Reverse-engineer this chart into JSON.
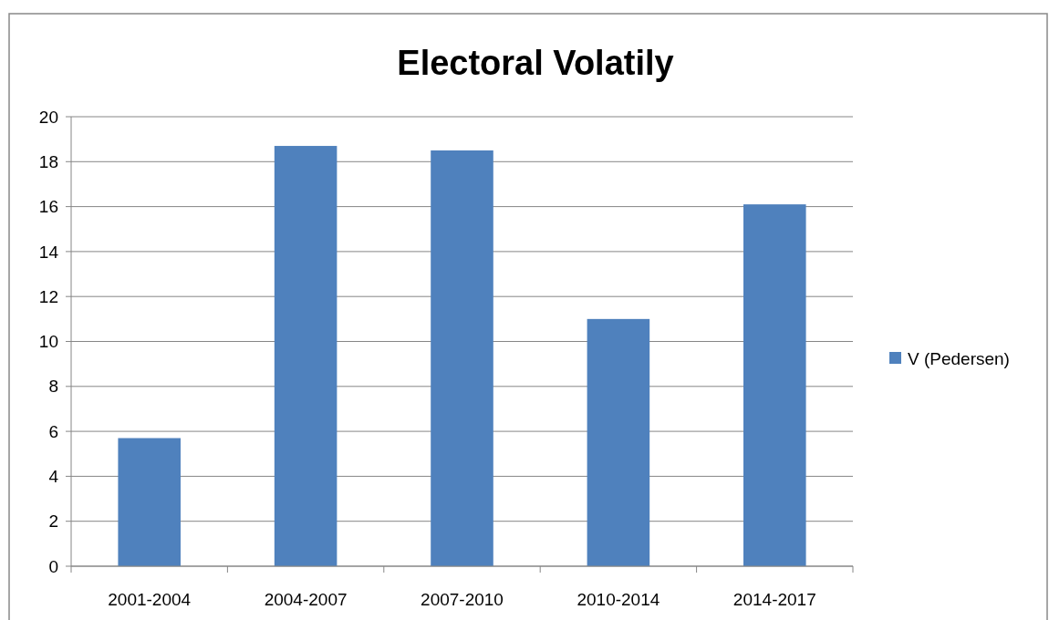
{
  "chart_data": {
    "type": "bar",
    "title": "Electoral Volatily",
    "categories": [
      "2001-2004",
      "2004-2007",
      "2007-2010",
      "2010-2014",
      "2014-2017"
    ],
    "series": [
      {
        "name": "V (Pedersen)",
        "color": "#4f81bd",
        "values": [
          5.7,
          18.7,
          18.5,
          11.0,
          16.1
        ]
      }
    ],
    "ylim": [
      0,
      20
    ],
    "yticks": [
      0,
      2,
      4,
      6,
      8,
      10,
      12,
      14,
      16,
      18,
      20
    ],
    "grid": "y",
    "legend": "right"
  }
}
